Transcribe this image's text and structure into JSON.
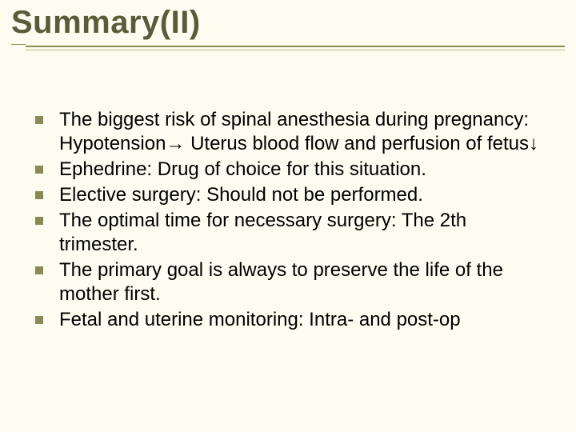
{
  "slide": {
    "title": "Summary(II)",
    "background_color": "#fcfcf0",
    "title_color": "#5b5b3a",
    "title_fontsize": 40,
    "rule_color": "#8a8a55",
    "bullet_color": "#8a8a55",
    "bullet_size": 10,
    "body_fontsize": 24,
    "body_color": "#000000",
    "items": [
      "The biggest risk of spinal anesthesia during pregnancy: Hypotension→ Uterus blood flow and perfusion of fetus↓",
      "Ephedrine: Drug of choice for this situation.",
      "Elective surgery: Should not be performed.",
      "The optimal time for necessary surgery: The 2th trimester.",
      "The primary goal is always to preserve the life of the mother first.",
      "Fetal and uterine monitoring: Intra- and post-op"
    ]
  }
}
